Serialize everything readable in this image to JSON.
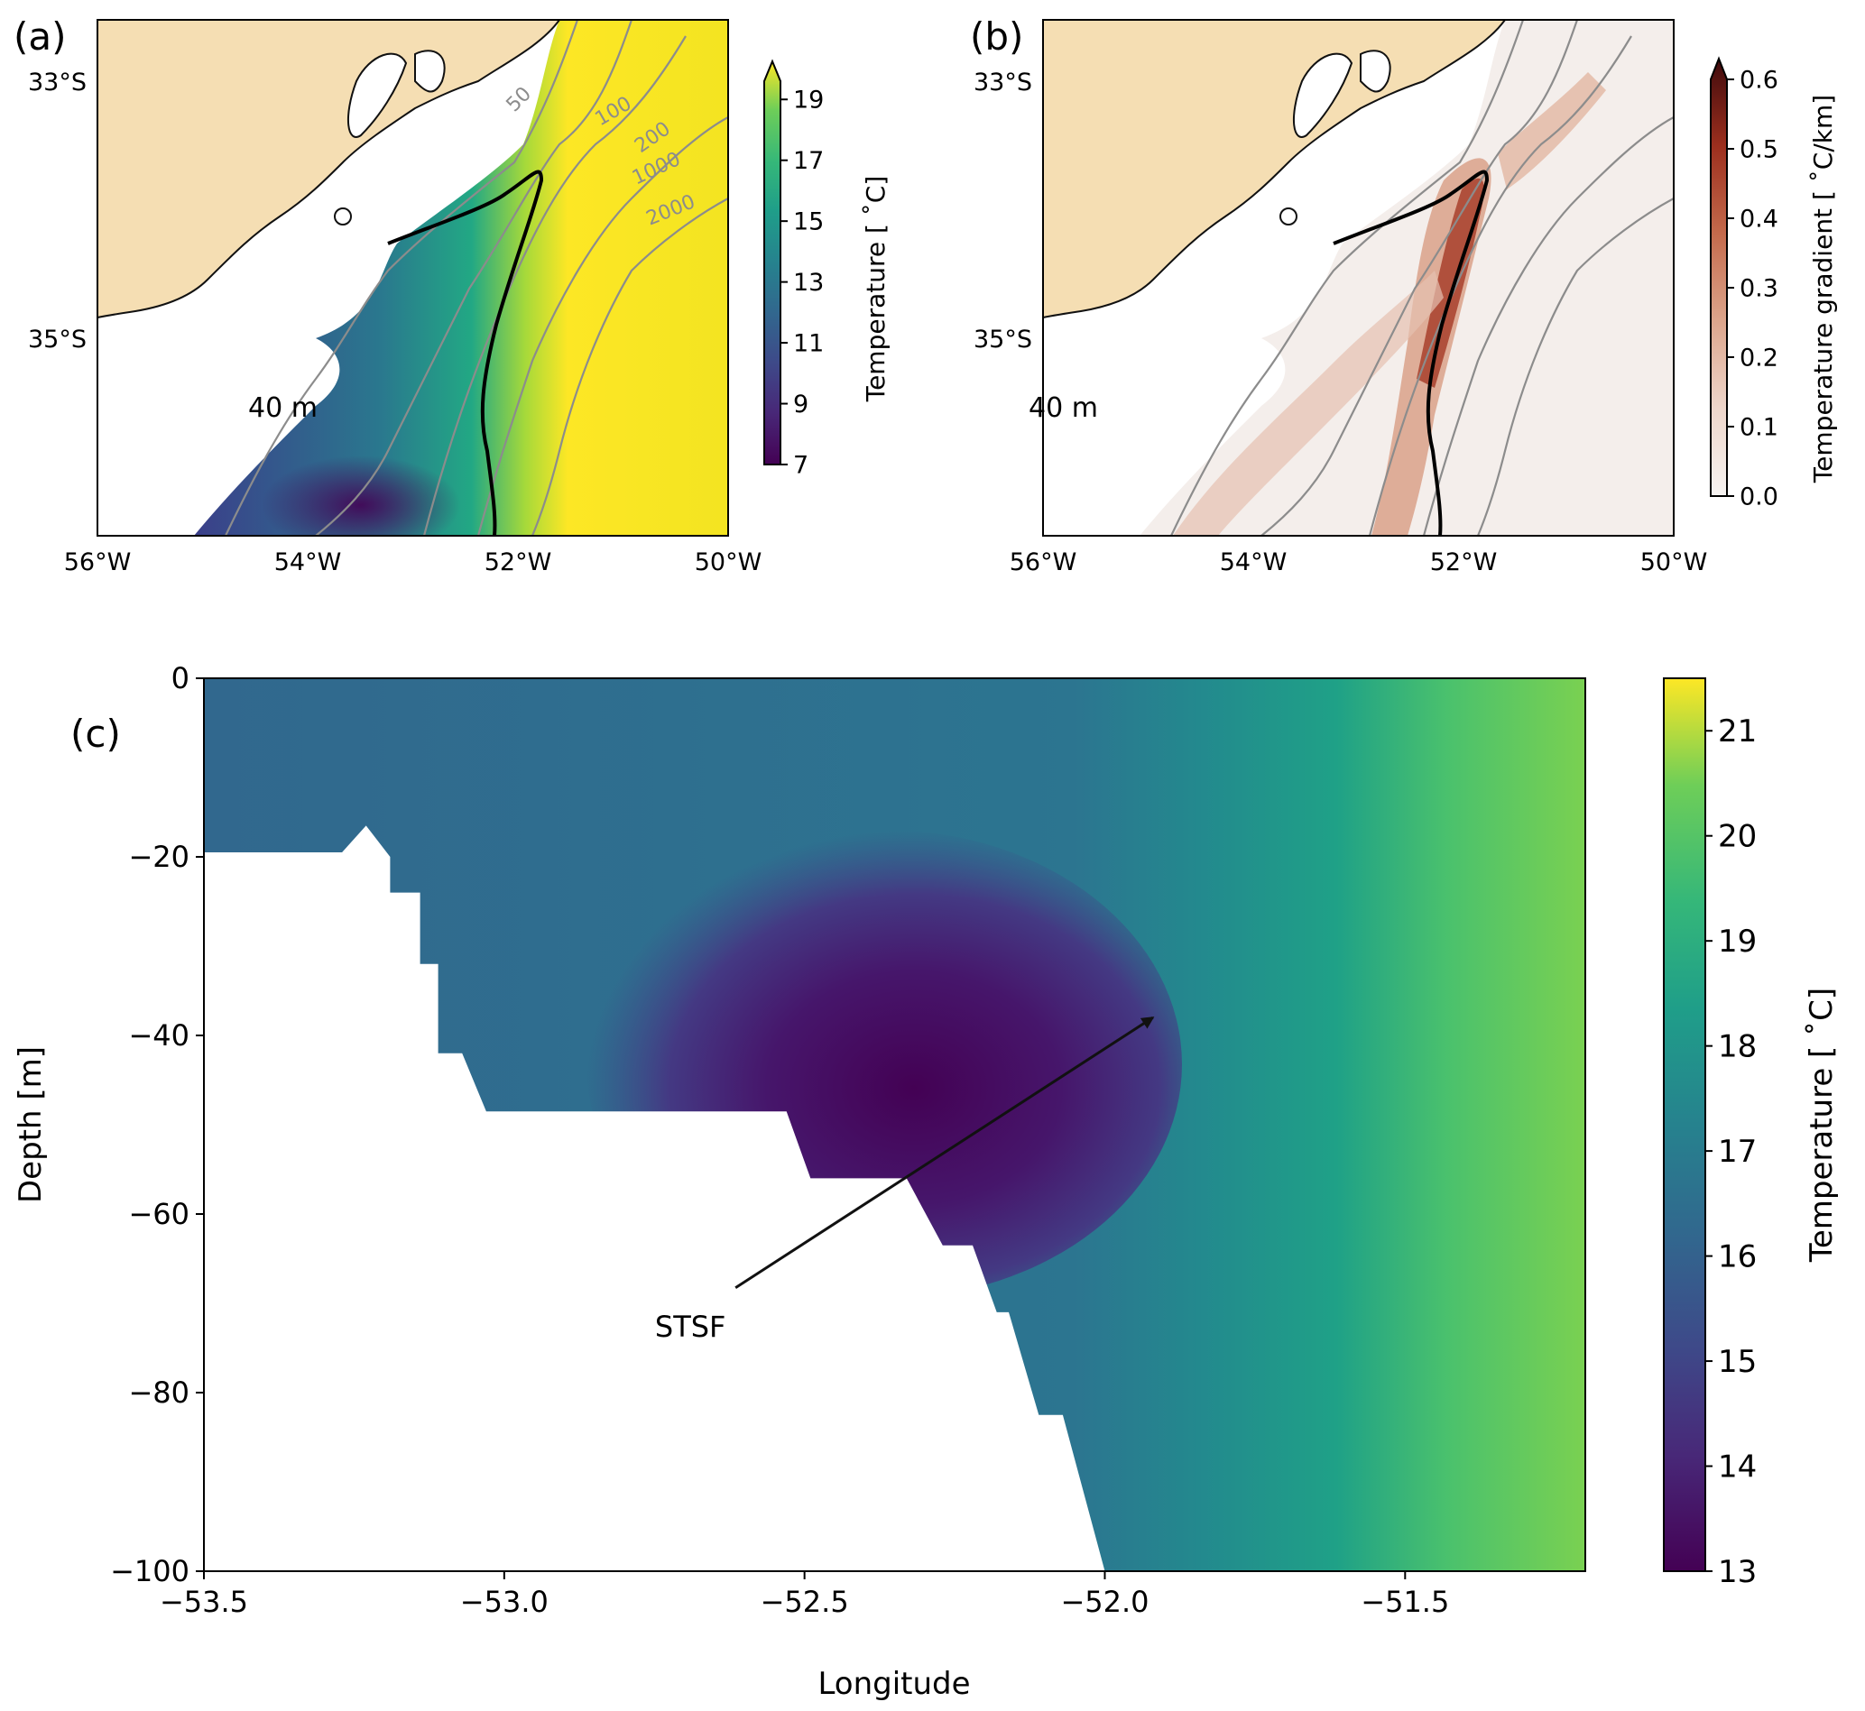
{
  "panels": {
    "a": {
      "label": "(a)",
      "depth_label": "40 m",
      "lat_ticks": [
        "33°S",
        "35°S"
      ],
      "lon_ticks": [
        "56°W",
        "54°W",
        "52°W",
        "50°W"
      ],
      "isobath_labels": [
        "50",
        "100",
        "200",
        "1000",
        "2000"
      ],
      "colorbar": {
        "label": "Temperature [$^\\circ$C]",
        "label_display": "Temperature [ ˚C]",
        "ticks": [
          "19",
          "17",
          "15",
          "13",
          "11",
          "9",
          "7"
        ],
        "range": [
          7,
          20
        ],
        "extend": "max",
        "colormap": "viridis"
      }
    },
    "b": {
      "label": "(b)",
      "depth_label": "40 m",
      "lat_ticks": [
        "33°S",
        "35°S"
      ],
      "lon_ticks": [
        "56°W",
        "54°W",
        "52°W",
        "50°W"
      ],
      "colorbar": {
        "label_display": "Temperature gradient [ ˚C/km]",
        "ticks": [
          "0.6",
          "0.5",
          "0.4",
          "0.3",
          "0.2",
          "0.1",
          "0.0"
        ],
        "range": [
          0,
          0.6
        ],
        "extend": "max",
        "colormap": "white-to-dark-red"
      }
    },
    "c": {
      "label": "(c)",
      "annotation": "STSF",
      "xlabel": "Longitude",
      "ylabel": "Depth [m]",
      "x_ticks": [
        "−53.5",
        "−53.0",
        "−52.5",
        "−52.0",
        "−51.5"
      ],
      "y_ticks": [
        "0",
        "−20",
        "−40",
        "−60",
        "−80",
        "−100"
      ],
      "colorbar": {
        "label_display": "Temperature [ ˚C]",
        "ticks": [
          "21",
          "20",
          "19",
          "18",
          "17",
          "16",
          "15",
          "14",
          "13"
        ],
        "range": [
          13,
          21.5
        ],
        "colormap": "viridis"
      }
    }
  },
  "chart_data": {
    "type": "heatmap",
    "panel": "c",
    "xlabel": "Longitude",
    "ylabel": "Depth [m]",
    "xlim": [
      -53.5,
      -51.2
    ],
    "ylim": [
      -100,
      0
    ],
    "z_label": "Temperature [°C]",
    "zlim": [
      13,
      21.5
    ],
    "bottom_profile": [
      {
        "x": -53.5,
        "y": -19.5
      },
      {
        "x": -53.27,
        "y": -19.5
      },
      {
        "x": -53.23,
        "y": -16.5
      },
      {
        "x": -53.19,
        "y": -20
      },
      {
        "x": -53.19,
        "y": -24
      },
      {
        "x": -53.14,
        "y": -24
      },
      {
        "x": -53.14,
        "y": -32
      },
      {
        "x": -53.11,
        "y": -32
      },
      {
        "x": -53.11,
        "y": -42
      },
      {
        "x": -53.07,
        "y": -42
      },
      {
        "x": -53.03,
        "y": -48.5
      },
      {
        "x": -52.53,
        "y": -48.5
      },
      {
        "x": -52.49,
        "y": -56
      },
      {
        "x": -52.33,
        "y": -56
      },
      {
        "x": -52.27,
        "y": -63.5
      },
      {
        "x": -52.22,
        "y": -63.5
      },
      {
        "x": -52.18,
        "y": -71
      },
      {
        "x": -52.16,
        "y": -71
      },
      {
        "x": -52.11,
        "y": -82.5
      },
      {
        "x": -52.07,
        "y": -82.5
      },
      {
        "x": -52.0,
        "y": -100
      }
    ],
    "annotation": {
      "text": "STSF",
      "text_at": {
        "x": -52.69,
        "y": -72.5
      },
      "arrow_to": {
        "x": -51.92,
        "y": -38
      }
    }
  }
}
